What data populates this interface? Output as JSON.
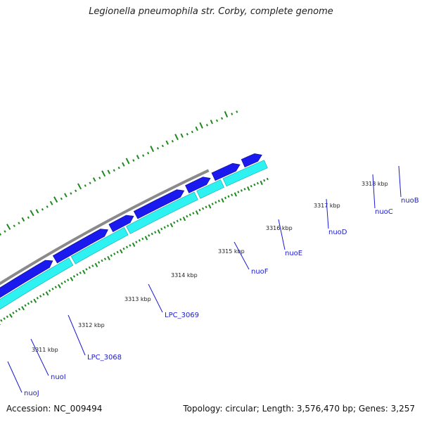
{
  "title": "Legionella pneumophila str. Corby, complete genome",
  "footer": {
    "accession": "Accession: NC_009494",
    "stats": "Topology: circular; Length: 3,576,470 bp; Genes: 3,257"
  },
  "colors": {
    "backbone": "#8a8a8a",
    "forward_genes": "#1a1aee",
    "reverse_genes": "#2ef2f2",
    "gc_ticks": "#1e8a1e",
    "label": "#1a1ad6"
  },
  "ticks": [
    {
      "label": "3311 kbp"
    },
    {
      "label": "3312 kbp"
    },
    {
      "label": "3313 kbp"
    },
    {
      "label": "3314 kbp"
    },
    {
      "label": "3315 kbp"
    },
    {
      "label": "3316 kbp"
    },
    {
      "label": "3317 kbp"
    },
    {
      "label": "3318 kbp"
    }
  ],
  "gene_labels": [
    {
      "label": "nuoJ"
    },
    {
      "label": "nuoI"
    },
    {
      "label": "LPC_3068"
    },
    {
      "label": "LPC_3069"
    },
    {
      "label": "nuoF"
    },
    {
      "label": "nuoE"
    },
    {
      "label": "nuoD"
    },
    {
      "label": "nuoC"
    },
    {
      "label": "nuoB"
    }
  ]
}
